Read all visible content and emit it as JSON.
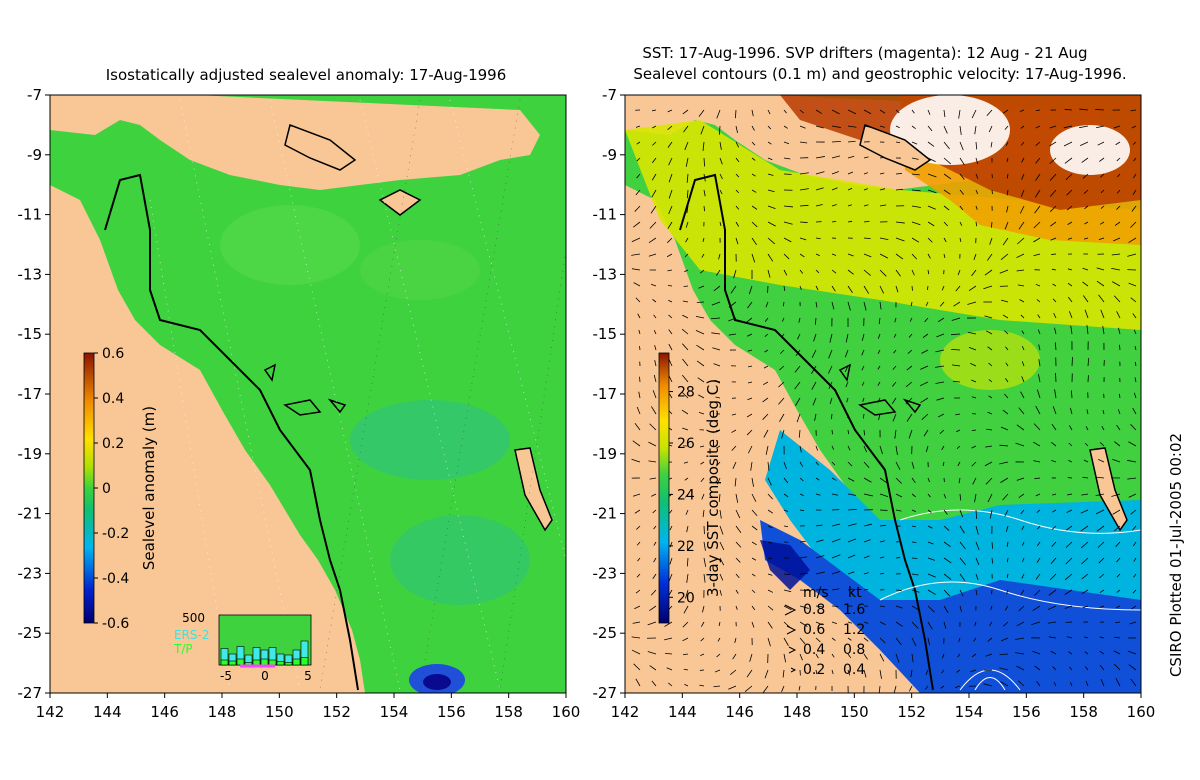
{
  "left_panel": {
    "title": "Isostatically adjusted sealevel anomaly: 17-Aug-1996",
    "colorbar": {
      "label": "Sealevel anomaly (m)",
      "ticks": [
        "0.6",
        "0.4",
        "0.2",
        "0",
        "-0.2",
        "-0.4",
        "-0.6"
      ],
      "range": [
        -0.6,
        0.6
      ]
    },
    "inset": {
      "ymax_label": "500",
      "legend": [
        "ERS-2",
        "T/P"
      ],
      "x_ticks": [
        "-5",
        "0",
        "5"
      ],
      "ers2_bars": [
        0.33,
        0.22,
        0.37,
        0.2,
        0.35,
        0.3,
        0.35,
        0.22,
        0.2,
        0.3,
        0.48
      ],
      "tp_bars": [
        0.1,
        0.08,
        0.12,
        0.05,
        0.1,
        0.12,
        0.1,
        0.07,
        0.05,
        0.12,
        0.15
      ]
    }
  },
  "right_panel": {
    "title_line1": "SST: 17-Aug-1996. SVP drifters (magenta): 12 Aug - 21 Aug",
    "title_line2": "Sealevel contours (0.1 m) and geostrophic velocity: 17-Aug-1996.",
    "colorbar": {
      "label": "3-day SST composite (deg C)",
      "ticks": [
        "28",
        "26",
        "24",
        "22",
        "20"
      ],
      "range": [
        19,
        29.5
      ]
    },
    "velocity_key": {
      "header_ms": "m/s",
      "header_kt": "kt",
      "rows": [
        {
          "ms": "0.8",
          "kt": "1.6"
        },
        {
          "ms": "0.6",
          "kt": "1.2"
        },
        {
          "ms": "0.4",
          "kt": "0.8"
        },
        {
          "ms": "0.2",
          "kt": "0.4"
        }
      ]
    }
  },
  "axes": {
    "x_ticks": [
      "142",
      "144",
      "146",
      "148",
      "150",
      "152",
      "154",
      "156",
      "158",
      "160"
    ],
    "y_ticks": [
      "-7",
      "-9",
      "-11",
      "-13",
      "-15",
      "-17",
      "-19",
      "-21",
      "-23",
      "-25",
      "-27"
    ]
  },
  "credit": "CSIRO Plotted 01-Jul-2005 00:02",
  "colors": {
    "land": "#f9c796",
    "sea_green": "#3fd23f",
    "coast": "#000000"
  }
}
